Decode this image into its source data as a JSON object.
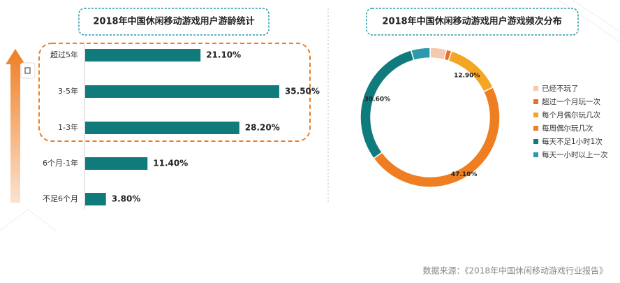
{
  "chart_data": [
    {
      "type": "bar",
      "orientation": "horizontal",
      "title": "2018年中国休闲移动游戏用户游龄统计",
      "categories": [
        "超过5年",
        "3-5年",
        "1-3年",
        "6个月-1年",
        "不足6个月"
      ],
      "values": [
        21.1,
        35.5,
        28.2,
        11.4,
        3.8
      ],
      "value_labels": [
        "21.10%",
        "35.50%",
        "28.20%",
        "11.40%",
        "3.80%"
      ],
      "color": "#0f7b7b"
    },
    {
      "type": "donut",
      "title": "2018年中国休闲移动游戏用户游戏频次分布",
      "categories": [
        "已经不玩了",
        "超过一个月玩一次",
        "每个月偶尔玩几次",
        "每周偶尔玩几次",
        "每天不足1小时1次",
        "每天一小时以上一次"
      ],
      "values": [
        3.8,
        1.2,
        12.9,
        47.1,
        30.6,
        4.4
      ],
      "value_labels": [
        null,
        null,
        "12.90%",
        "47.10%",
        "30.60%",
        null
      ],
      "colors": [
        "#f5c9ac",
        "#e8702a",
        "#f3a524",
        "#ef7e22",
        "#107b7c",
        "#2b9aab"
      ],
      "legend": "right"
    }
  ],
  "source": "数据来源：《2018年中国休闲移动游戏行业报告》"
}
